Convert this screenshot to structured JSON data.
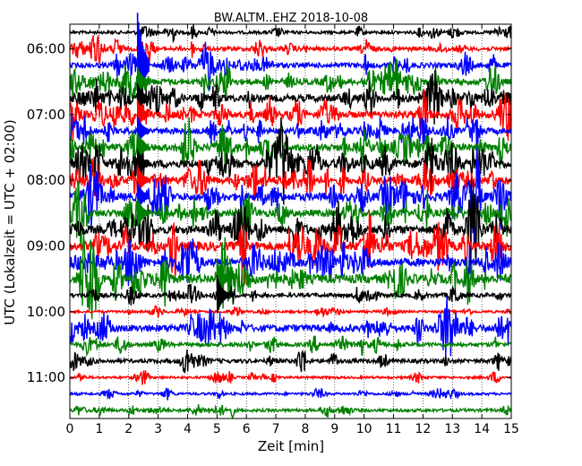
{
  "chart_data": {
    "type": "line",
    "title": "BW.ALTM..EHZ 2018-10-08",
    "xlabel": "Zeit  [min]",
    "ylabel": "UTC (Lokalzeit = UTC + 02:00)",
    "xlim": [
      0,
      15
    ],
    "x_ticks": [
      "0",
      "1",
      "2",
      "3",
      "4",
      "5",
      "6",
      "7",
      "8",
      "9",
      "10",
      "11",
      "12",
      "13",
      "14",
      "15"
    ],
    "y_tick_labels": [
      "06:00",
      "07:00",
      "08:00",
      "09:00",
      "10:00",
      "11:00"
    ],
    "grid": true,
    "trace_colors": [
      "#000000",
      "#ff0000",
      "#0000ff",
      "#008000"
    ],
    "series": [
      {
        "start": "05:45",
        "amplitude": 0.15,
        "activity": 0.2
      },
      {
        "start": "06:00",
        "amplitude": 0.2,
        "activity": 0.35
      },
      {
        "start": "06:15",
        "amplitude": 0.25,
        "activity": 0.45
      },
      {
        "start": "06:30",
        "amplitude": 0.3,
        "activity": 0.55
      },
      {
        "start": "06:45",
        "amplitude": 0.35,
        "activity": 0.6
      },
      {
        "start": "07:00",
        "amplitude": 0.35,
        "activity": 0.6
      },
      {
        "start": "07:15",
        "amplitude": 0.3,
        "activity": 0.5
      },
      {
        "start": "07:30",
        "amplitude": 0.35,
        "activity": 0.55
      },
      {
        "start": "07:45",
        "amplitude": 0.4,
        "activity": 0.65
      },
      {
        "start": "08:00",
        "amplitude": 0.35,
        "activity": 0.6
      },
      {
        "start": "08:15",
        "amplitude": 0.4,
        "activity": 0.65
      },
      {
        "start": "08:30",
        "amplitude": 0.35,
        "activity": 0.6
      },
      {
        "start": "08:45",
        "amplitude": 0.4,
        "activity": 0.65
      },
      {
        "start": "09:00",
        "amplitude": 0.45,
        "activity": 0.7
      },
      {
        "start": "09:15",
        "amplitude": 0.4,
        "activity": 0.6
      },
      {
        "start": "09:30",
        "amplitude": 0.45,
        "activity": 0.6
      },
      {
        "start": "09:45",
        "amplitude": 0.2,
        "activity": 0.2
      },
      {
        "start": "10:00",
        "amplitude": 0.12,
        "activity": 0.1
      },
      {
        "start": "10:15",
        "amplitude": 0.35,
        "activity": 0.4
      },
      {
        "start": "10:30",
        "amplitude": 0.2,
        "activity": 0.25
      },
      {
        "start": "10:45",
        "amplitude": 0.2,
        "activity": 0.2
      },
      {
        "start": "11:00",
        "amplitude": 0.12,
        "activity": 0.1
      },
      {
        "start": "11:15",
        "amplitude": 0.12,
        "activity": 0.1
      },
      {
        "start": "11:30",
        "amplitude": 0.15,
        "activity": 0.15
      }
    ],
    "events": [
      {
        "x_min": 2.3,
        "trace_start": "06:15",
        "trace_span": 1,
        "amplitude": 3.2
      },
      {
        "x_min": 2.3,
        "trace_start": "06:30",
        "trace_span": 9,
        "amplitude": 0.9
      },
      {
        "x_min": 5.0,
        "trace_start": "09:30",
        "trace_span": 2,
        "amplitude": 1.2
      }
    ]
  }
}
